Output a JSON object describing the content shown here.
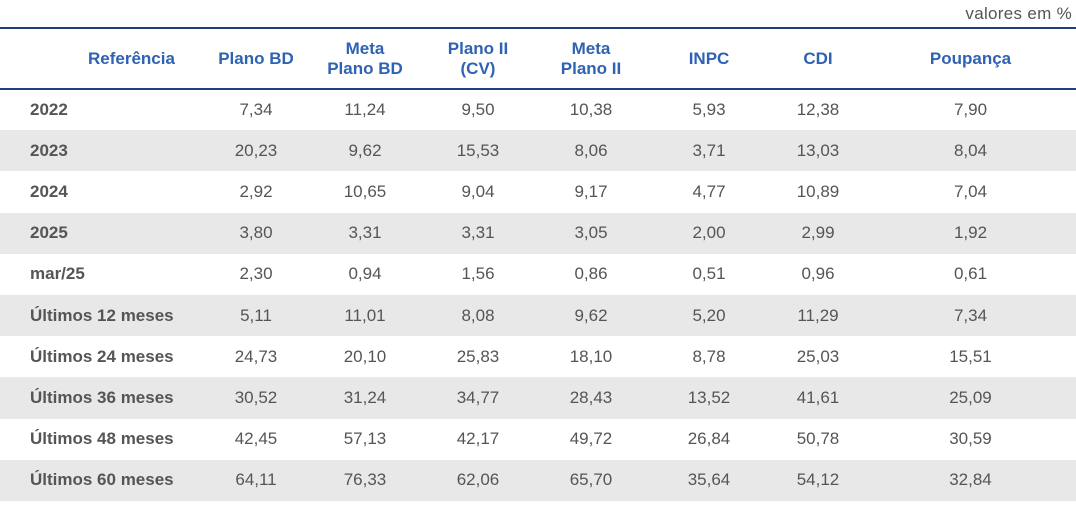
{
  "unit_note": "valores em %",
  "headers": [
    "Referência",
    "Plano BD",
    "Meta\nPlano BD",
    "Plano II\n(CV)",
    "Meta\nPlano II",
    "INPC",
    "CDI",
    "Poupança"
  ],
  "rows": [
    {
      "ref": "2022",
      "values": [
        "7,34",
        "11,24",
        "9,50",
        "10,38",
        "5,93",
        "12,38",
        "7,90"
      ]
    },
    {
      "ref": "2023",
      "values": [
        "20,23",
        "9,62",
        "15,53",
        "8,06",
        "3,71",
        "13,03",
        "8,04"
      ]
    },
    {
      "ref": "2024",
      "values": [
        "2,92",
        "10,65",
        "9,04",
        "9,17",
        "4,77",
        "10,89",
        "7,04"
      ]
    },
    {
      "ref": "2025",
      "values": [
        "3,80",
        "3,31",
        "3,31",
        "3,05",
        "2,00",
        "2,99",
        "1,92"
      ]
    },
    {
      "ref": "mar/25",
      "values": [
        "2,30",
        "0,94",
        "1,56",
        "0,86",
        "0,51",
        "0,96",
        "0,61"
      ]
    },
    {
      "ref": "Últimos 12 meses",
      "values": [
        "5,11",
        "11,01",
        "8,08",
        "9,62",
        "5,20",
        "11,29",
        "7,34"
      ]
    },
    {
      "ref": "Últimos 24 meses",
      "values": [
        "24,73",
        "20,10",
        "25,83",
        "18,10",
        "8,78",
        "25,03",
        "15,51"
      ]
    },
    {
      "ref": "Últimos 36 meses",
      "values": [
        "30,52",
        "31,24",
        "34,77",
        "28,43",
        "13,52",
        "41,61",
        "25,09"
      ]
    },
    {
      "ref": "Últimos 48 meses",
      "values": [
        "42,45",
        "57,13",
        "42,17",
        "49,72",
        "26,84",
        "50,78",
        "30,59"
      ]
    },
    {
      "ref": "Últimos 60 meses",
      "values": [
        "64,11",
        "76,33",
        "62,06",
        "65,70",
        "35,64",
        "54,12",
        "32,84"
      ]
    }
  ]
}
